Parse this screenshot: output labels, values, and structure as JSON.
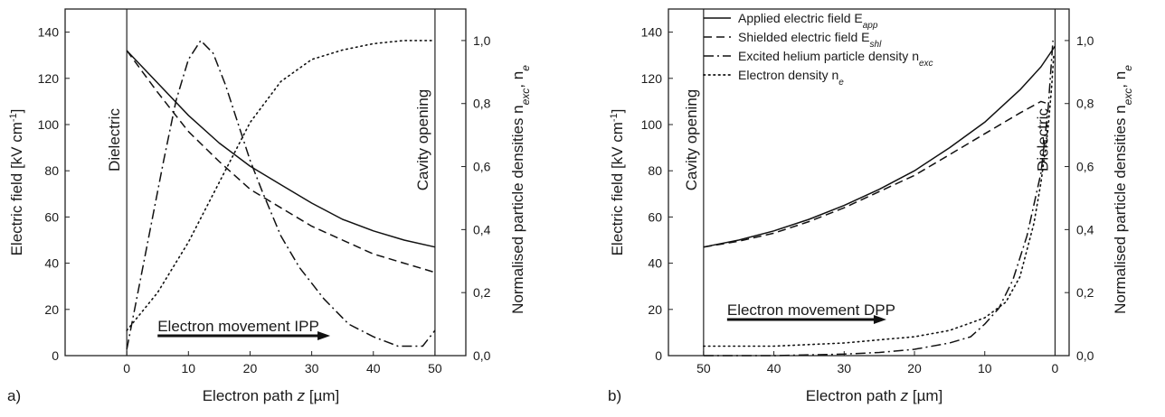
{
  "chart_data": [
    {
      "type": "line",
      "panel_label": "a)",
      "xlabel": "Electron path z [µm]",
      "ylabel": "Electric field [kV cm⁻¹]",
      "y2label": "Normalised particle densities nexc, ne",
      "xlim": [
        -10,
        55
      ],
      "ylim": [
        0,
        150
      ],
      "y2lim": [
        0,
        1.1
      ],
      "x_ticks": [
        0,
        10,
        20,
        30,
        40,
        50
      ],
      "y_ticks": [
        0,
        20,
        40,
        60,
        80,
        100,
        120,
        140
      ],
      "y2_ticks": [
        "0,0",
        "0,2",
        "0,4",
        "0,6",
        "0,8",
        "1,0"
      ],
      "legend": "none",
      "grid": false,
      "annotations": {
        "left_boundary": "Dielectric",
        "right_boundary": "Cavity opening",
        "arrow_text": "Electron movement IPP"
      },
      "series": [
        {
          "name": "Applied electric field Eapp",
          "axis": "left",
          "style": "solid",
          "x": [
            0,
            5,
            10,
            15,
            20,
            25,
            30,
            35,
            40,
            45,
            50
          ],
          "y": [
            132,
            118,
            104,
            92,
            82,
            74,
            66,
            59,
            54,
            50,
            47
          ]
        },
        {
          "name": "Shielded electric field Eshl",
          "axis": "left",
          "style": "dashed",
          "x": [
            0,
            5,
            10,
            15,
            20,
            25,
            30,
            35,
            40,
            45,
            50
          ],
          "y": [
            132,
            114,
            97,
            84,
            72,
            64,
            56,
            50,
            44,
            40,
            36
          ]
        },
        {
          "name": "Excited helium particle density nexc",
          "axis": "right",
          "style": "dashdot",
          "x": [
            0,
            2,
            4,
            6,
            8,
            10,
            12,
            14,
            16,
            18,
            20,
            22,
            25,
            28,
            32,
            36,
            40,
            44,
            48,
            50
          ],
          "y": [
            0.02,
            0.22,
            0.42,
            0.62,
            0.81,
            0.94,
            1.0,
            0.96,
            0.86,
            0.74,
            0.62,
            0.52,
            0.38,
            0.28,
            0.18,
            0.1,
            0.06,
            0.03,
            0.03,
            0.08
          ]
        },
        {
          "name": "Electron density ne",
          "axis": "right",
          "style": "dotted",
          "x": [
            0,
            5,
            10,
            15,
            20,
            25,
            30,
            35,
            40,
            45,
            50
          ],
          "y": [
            0.08,
            0.2,
            0.36,
            0.55,
            0.74,
            0.87,
            0.94,
            0.97,
            0.99,
            1.0,
            1.0
          ]
        }
      ]
    },
    {
      "type": "line",
      "panel_label": "b)",
      "xlabel": "Electron path z [µm]",
      "ylabel": "Electric field [kV cm⁻¹]",
      "y2label": "Normalised particle densities nexc, ne",
      "xlim": [
        55,
        -2
      ],
      "ylim": [
        0,
        150
      ],
      "y2lim": [
        0,
        1.1
      ],
      "x_ticks": [
        50,
        40,
        30,
        20,
        10,
        0
      ],
      "y_ticks": [
        0,
        20,
        40,
        60,
        80,
        100,
        120,
        140
      ],
      "y2_ticks": [
        "0,0",
        "0,2",
        "0,4",
        "0,6",
        "0,8",
        "1,0"
      ],
      "legend": "top-left",
      "grid": false,
      "annotations": {
        "left_boundary": "Cavity opening",
        "right_boundary": "Dielectric",
        "arrow_text": "Electron movement DPP"
      },
      "series": [
        {
          "name": "Applied electric field Eapp",
          "axis": "left",
          "style": "solid",
          "x": [
            50,
            45,
            40,
            35,
            30,
            25,
            20,
            15,
            10,
            5,
            2,
            0
          ],
          "y": [
            47,
            50,
            54,
            59,
            65,
            72,
            80,
            90,
            101,
            115,
            125,
            134
          ]
        },
        {
          "name": "Shielded electric field Eshl",
          "axis": "left",
          "style": "dashed",
          "x": [
            50,
            45,
            40,
            35,
            30,
            25,
            20,
            15,
            10,
            5,
            2,
            1
          ],
          "y": [
            47,
            49.5,
            53,
            58,
            64,
            71,
            78,
            87,
            96,
            105,
            110,
            109
          ]
        },
        {
          "name": "Excited helium particle density nexc",
          "axis": "right",
          "style": "dashdot",
          "x": [
            50,
            40,
            30,
            25,
            20,
            15,
            12,
            10,
            8,
            6,
            4,
            2,
            1,
            0.3
          ],
          "y": [
            0.0,
            0.0,
            0.005,
            0.01,
            0.02,
            0.04,
            0.06,
            0.1,
            0.15,
            0.24,
            0.38,
            0.58,
            0.78,
            1.0
          ]
        },
        {
          "name": "Electron density ne",
          "axis": "right",
          "style": "dotted",
          "x": [
            50,
            40,
            30,
            25,
            20,
            15,
            10,
            7,
            5,
            3,
            2,
            1,
            0.5,
            0.2
          ],
          "y": [
            0.03,
            0.03,
            0.04,
            0.05,
            0.06,
            0.08,
            0.12,
            0.17,
            0.25,
            0.42,
            0.55,
            0.72,
            0.85,
            0.95
          ]
        }
      ]
    }
  ],
  "legend_entries": [
    {
      "style": "solid",
      "label": "Applied electric field E",
      "sub": "app"
    },
    {
      "style": "dashed",
      "label": "Shielded electric field E",
      "sub": "shl"
    },
    {
      "style": "dashdot",
      "label": "Excited helium particle density n",
      "sub": "exc"
    },
    {
      "style": "dotted",
      "label": "Electron density n",
      "sub": "e"
    }
  ],
  "axis_text": {
    "ylabel_main": "Electric field [kV cm",
    "ylabel_sup": "-1",
    "ylabel_end": "]",
    "y2label_main": "Normalised particle densities n",
    "y2label_sub1": "exc",
    "y2label_mid": ", n",
    "y2label_sub2": "e",
    "xlabel_main": "Electron path ",
    "xlabel_var": "z",
    "xlabel_unit": " [µm]"
  }
}
